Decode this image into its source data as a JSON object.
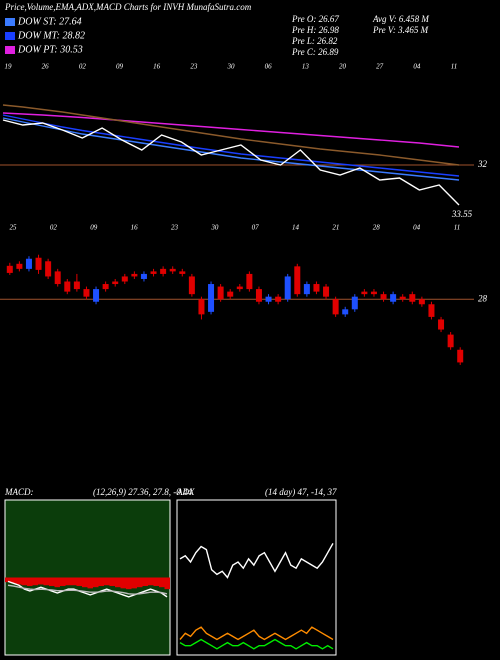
{
  "header": {
    "title": "Price,Volume,EMA,ADX,MACD Charts for INVH MunafaSutra.com",
    "stats": [
      "Pre O: 26.67",
      "Pre H: 26.98",
      "Pre L: 26.82",
      "Pre C: 26.89",
      "Avg V: 6.458 M",
      "Pre V: 3.465 M"
    ]
  },
  "chart_data": [
    {
      "type": "line",
      "ylim": [
        30,
        34.6
      ],
      "yticks": [
        32
      ],
      "level_color": "#a0522d",
      "annotation": "33.55",
      "date_labels": [
        "19",
        "26",
        "02",
        "09",
        "16",
        "23",
        "30",
        "06",
        "13",
        "20",
        "27",
        "04",
        "11"
      ],
      "series": [
        {
          "name": "DOW ST: 27.64",
          "color": "#3b7bff",
          "values": [
            33.88,
            33.72,
            33.56,
            33.4,
            33.24,
            33.12,
            33.0,
            32.88,
            32.76,
            32.64,
            32.52,
            32.4,
            32.28,
            32.2,
            32.12,
            32.04,
            31.96,
            31.88,
            31.8,
            31.72,
            31.64,
            31.56,
            31.48,
            31.4
          ]
        },
        {
          "name": "DOW MT: 28.82",
          "color": "#1a3fff",
          "values": [
            34.0,
            33.84,
            33.68,
            33.52,
            33.38,
            33.26,
            33.14,
            33.02,
            32.9,
            32.78,
            32.66,
            32.55,
            32.44,
            32.36,
            32.28,
            32.2,
            32.12,
            32.04,
            31.96,
            31.88,
            31.8,
            31.72,
            31.64,
            31.56
          ]
        },
        {
          "name": "DOW PT: 30.53",
          "color": "#e020e0",
          "values": [
            34.08,
            34.04,
            34.0,
            33.95,
            33.9,
            33.84,
            33.78,
            33.72,
            33.66,
            33.6,
            33.54,
            33.48,
            33.42,
            33.36,
            33.3,
            33.24,
            33.18,
            33.12,
            33.06,
            33.0,
            32.94,
            32.88,
            32.8,
            32.72
          ]
        },
        {
          "color": "#8b5a2b",
          "values": [
            34.4,
            34.32,
            34.22,
            34.12,
            34.0,
            33.88,
            33.76,
            33.64,
            33.52,
            33.4,
            33.28,
            33.16,
            33.04,
            32.94,
            32.84,
            32.74,
            32.64,
            32.56,
            32.48,
            32.4,
            32.3,
            32.2,
            32.1,
            32.0
          ]
        },
        {
          "color": "#ffffff",
          "values": [
            33.8,
            33.6,
            33.68,
            33.4,
            33.08,
            33.48,
            33.0,
            32.6,
            33.2,
            32.92,
            32.4,
            32.6,
            32.8,
            32.2,
            32.0,
            32.6,
            31.8,
            31.6,
            31.88,
            31.4,
            31.48,
            31.0,
            31.2,
            30.4
          ]
        }
      ]
    },
    {
      "type": "candlestick",
      "ylim": [
        26.6,
        29.25
      ],
      "yticks": [
        28
      ],
      "level_color": "#a0522d",
      "up_color": "#1e50ff",
      "down_color": "#e00000",
      "date_labels": [
        "25",
        "02",
        "09",
        "16",
        "23",
        "30",
        "07",
        "14",
        "21",
        "28",
        "04",
        "11"
      ],
      "open": [
        28.66,
        28.7,
        28.6,
        28.82,
        28.75,
        28.55,
        28.35,
        28.35,
        28.2,
        27.95,
        28.3,
        28.35,
        28.45,
        28.5,
        28.4,
        28.55,
        28.6,
        28.6,
        28.55,
        28.45,
        28.0,
        27.75,
        28.25,
        28.15,
        28.25,
        28.5,
        28.2,
        27.95,
        28.05,
        28.0,
        28.65,
        28.1,
        28.3,
        28.25,
        28.0,
        27.7,
        27.8,
        28.15,
        28.15,
        28.1,
        27.95,
        28.05,
        28.1,
        28.0,
        27.9,
        27.6,
        27.3,
        27.0
      ],
      "high": [
        28.72,
        28.75,
        28.85,
        28.88,
        28.8,
        28.6,
        28.4,
        28.5,
        28.25,
        28.25,
        28.35,
        28.4,
        28.5,
        28.55,
        28.55,
        28.6,
        28.65,
        28.65,
        28.6,
        28.5,
        28.05,
        28.35,
        28.3,
        28.2,
        28.3,
        28.55,
        28.25,
        28.1,
        28.1,
        28.5,
        28.7,
        28.35,
        28.35,
        28.3,
        28.05,
        27.85,
        28.1,
        28.2,
        28.2,
        28.15,
        28.15,
        28.1,
        28.15,
        28.05,
        27.95,
        27.65,
        27.35,
        27.05
      ],
      "low": [
        28.48,
        28.55,
        28.55,
        28.5,
        28.4,
        28.25,
        28.1,
        28.15,
        28.0,
        27.9,
        28.15,
        28.25,
        28.3,
        28.4,
        28.35,
        28.45,
        28.45,
        28.5,
        28.45,
        28.05,
        27.6,
        27.7,
        27.95,
        28.0,
        28.15,
        28.15,
        27.9,
        27.9,
        27.9,
        27.95,
        28.05,
        28.05,
        28.1,
        28.0,
        27.65,
        27.65,
        27.75,
        28.05,
        28.05,
        27.95,
        27.9,
        27.95,
        27.9,
        27.85,
        27.6,
        27.35,
        27.0,
        26.7
      ],
      "close": [
        28.52,
        28.6,
        28.8,
        28.58,
        28.45,
        28.3,
        28.15,
        28.2,
        28.05,
        28.2,
        28.2,
        28.3,
        28.35,
        28.45,
        28.5,
        28.5,
        28.5,
        28.55,
        28.5,
        28.1,
        27.7,
        28.3,
        28.0,
        28.05,
        28.2,
        28.2,
        27.95,
        28.05,
        27.95,
        28.45,
        28.1,
        28.3,
        28.15,
        28.05,
        27.7,
        27.8,
        28.05,
        28.1,
        28.1,
        28.0,
        28.1,
        28.0,
        27.95,
        27.9,
        27.65,
        27.4,
        27.05,
        26.75
      ]
    },
    {
      "type": "line",
      "title": "MACD:",
      "subtitle": "(12,26,9) 27.36, 27.8, -0.44",
      "ylim": [
        -2,
        2
      ],
      "background": "#0b3d0b",
      "histogram_color": "#e00000",
      "histogram": [
        -0.12,
        -0.15,
        -0.18,
        -0.2,
        -0.22,
        -0.2,
        -0.18,
        -0.2,
        -0.22,
        -0.25,
        -0.22,
        -0.2,
        -0.2,
        -0.22,
        -0.25,
        -0.28,
        -0.25,
        -0.22,
        -0.2,
        -0.22,
        -0.25,
        -0.28,
        -0.3,
        -0.28,
        -0.25,
        -0.22,
        -0.2,
        -0.22,
        -0.25,
        -0.3
      ],
      "series": [
        {
          "color": "#ffffff",
          "values": [
            -0.1,
            -0.15,
            -0.2,
            -0.3,
            -0.35,
            -0.3,
            -0.25,
            -0.3,
            -0.35,
            -0.4,
            -0.35,
            -0.3,
            -0.3,
            -0.35,
            -0.4,
            -0.45,
            -0.4,
            -0.35,
            -0.3,
            -0.35,
            -0.4,
            -0.45,
            -0.5,
            -0.45,
            -0.4,
            -0.35,
            -0.3,
            -0.35,
            -0.4,
            -0.5
          ]
        },
        {
          "color": "#bbbbbb",
          "values": [
            -0.2,
            -0.22,
            -0.25,
            -0.28,
            -0.3,
            -0.31,
            -0.3,
            -0.31,
            -0.32,
            -0.34,
            -0.34,
            -0.33,
            -0.33,
            -0.34,
            -0.36,
            -0.38,
            -0.38,
            -0.37,
            -0.35,
            -0.35,
            -0.37,
            -0.39,
            -0.42,
            -0.43,
            -0.42,
            -0.4,
            -0.38,
            -0.38,
            -0.39,
            -0.42
          ]
        }
      ]
    },
    {
      "type": "line",
      "title": "ADX",
      "subtitle": "(14 day) 47, -14, 37",
      "ylim": [
        0,
        100
      ],
      "background": "#000000",
      "series": [
        {
          "color": "#ffffff",
          "values": [
            62,
            64,
            60,
            66,
            70,
            68,
            55,
            52,
            54,
            50,
            58,
            60,
            56,
            62,
            58,
            64,
            66,
            60,
            54,
            60,
            66,
            58,
            56,
            62,
            60,
            58,
            56,
            60,
            66,
            72
          ]
        },
        {
          "color": "#ff8c00",
          "values": [
            10,
            14,
            12,
            16,
            18,
            14,
            12,
            10,
            12,
            14,
            12,
            10,
            12,
            14,
            16,
            12,
            10,
            12,
            14,
            12,
            10,
            12,
            14,
            16,
            14,
            18,
            16,
            14,
            12,
            10
          ]
        },
        {
          "color": "#00ee00",
          "values": [
            8,
            6,
            6,
            8,
            10,
            8,
            6,
            4,
            6,
            8,
            6,
            6,
            8,
            6,
            4,
            6,
            6,
            8,
            10,
            8,
            6,
            6,
            4,
            6,
            8,
            6,
            6,
            4,
            6,
            4
          ]
        }
      ]
    }
  ]
}
